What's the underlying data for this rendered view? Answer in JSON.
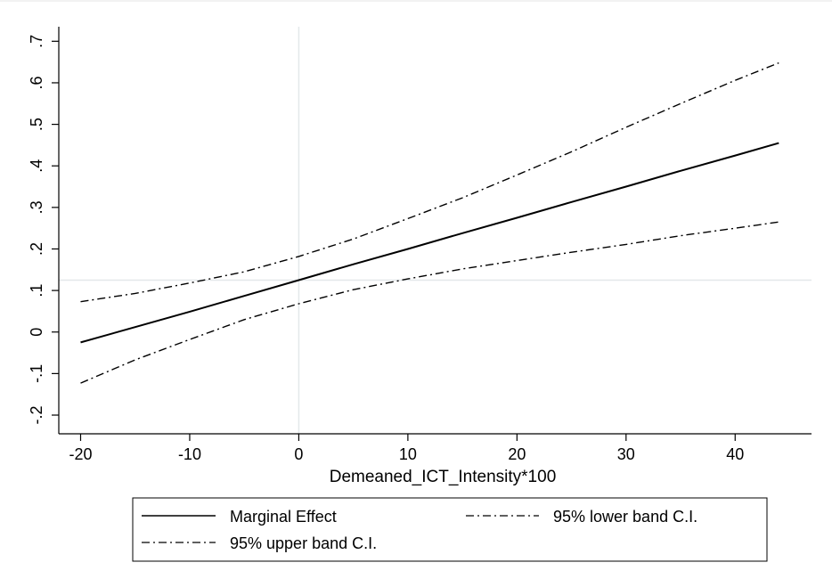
{
  "chart_data": {
    "type": "line",
    "title": "",
    "xlabel": "Demeaned_ICT_Intensity*100",
    "ylabel": "",
    "xlim": [
      -22,
      47
    ],
    "ylim": [
      -0.245,
      0.735
    ],
    "x_ticks": [
      -20,
      -10,
      0,
      10,
      20,
      30,
      40
    ],
    "x_tick_labels": [
      "-20",
      "-10",
      "0",
      "10",
      "20",
      "30",
      "40"
    ],
    "y_ticks": [
      -0.2,
      -0.1,
      0,
      0.1,
      0.2,
      0.3,
      0.4,
      0.5,
      0.6,
      0.7
    ],
    "y_tick_labels": [
      "-.2",
      "-.1",
      "0",
      ".1",
      ".2",
      ".3",
      ".4",
      ".5",
      ".6",
      ".7"
    ],
    "reference_lines": {
      "x": 0,
      "y": 0.125
    },
    "grid": false,
    "legend_position": "bottom",
    "series": [
      {
        "name": "Marginal Effect",
        "style": "solid",
        "x": [
          -20,
          -15,
          -10,
          -5,
          0,
          5,
          10,
          15,
          20,
          25,
          30,
          35,
          40,
          44
        ],
        "y": [
          -0.025,
          0.012,
          0.049,
          0.087,
          0.125,
          0.163,
          0.2,
          0.238,
          0.275,
          0.313,
          0.35,
          0.388,
          0.425,
          0.455
        ]
      },
      {
        "name": "95% lower band C.I.",
        "style": "dashdot",
        "x": [
          -20,
          -15,
          -10,
          -5,
          0,
          5,
          10,
          15,
          20,
          25,
          30,
          35,
          40,
          44
        ],
        "y": [
          -0.123,
          -0.067,
          -0.018,
          0.03,
          0.068,
          0.102,
          0.128,
          0.152,
          0.172,
          0.192,
          0.211,
          0.232,
          0.25,
          0.265
        ]
      },
      {
        "name": "95% upper band C.I.",
        "style": "dashdot",
        "x": [
          -20,
          -15,
          -10,
          -5,
          0,
          5,
          10,
          15,
          20,
          25,
          30,
          35,
          40,
          44
        ],
        "y": [
          0.073,
          0.093,
          0.118,
          0.145,
          0.182,
          0.224,
          0.273,
          0.323,
          0.378,
          0.434,
          0.493,
          0.55,
          0.606,
          0.648
        ]
      }
    ],
    "colors": {
      "series": "#000000",
      "reference": "#e3e8ea",
      "axis": "#000000"
    }
  }
}
